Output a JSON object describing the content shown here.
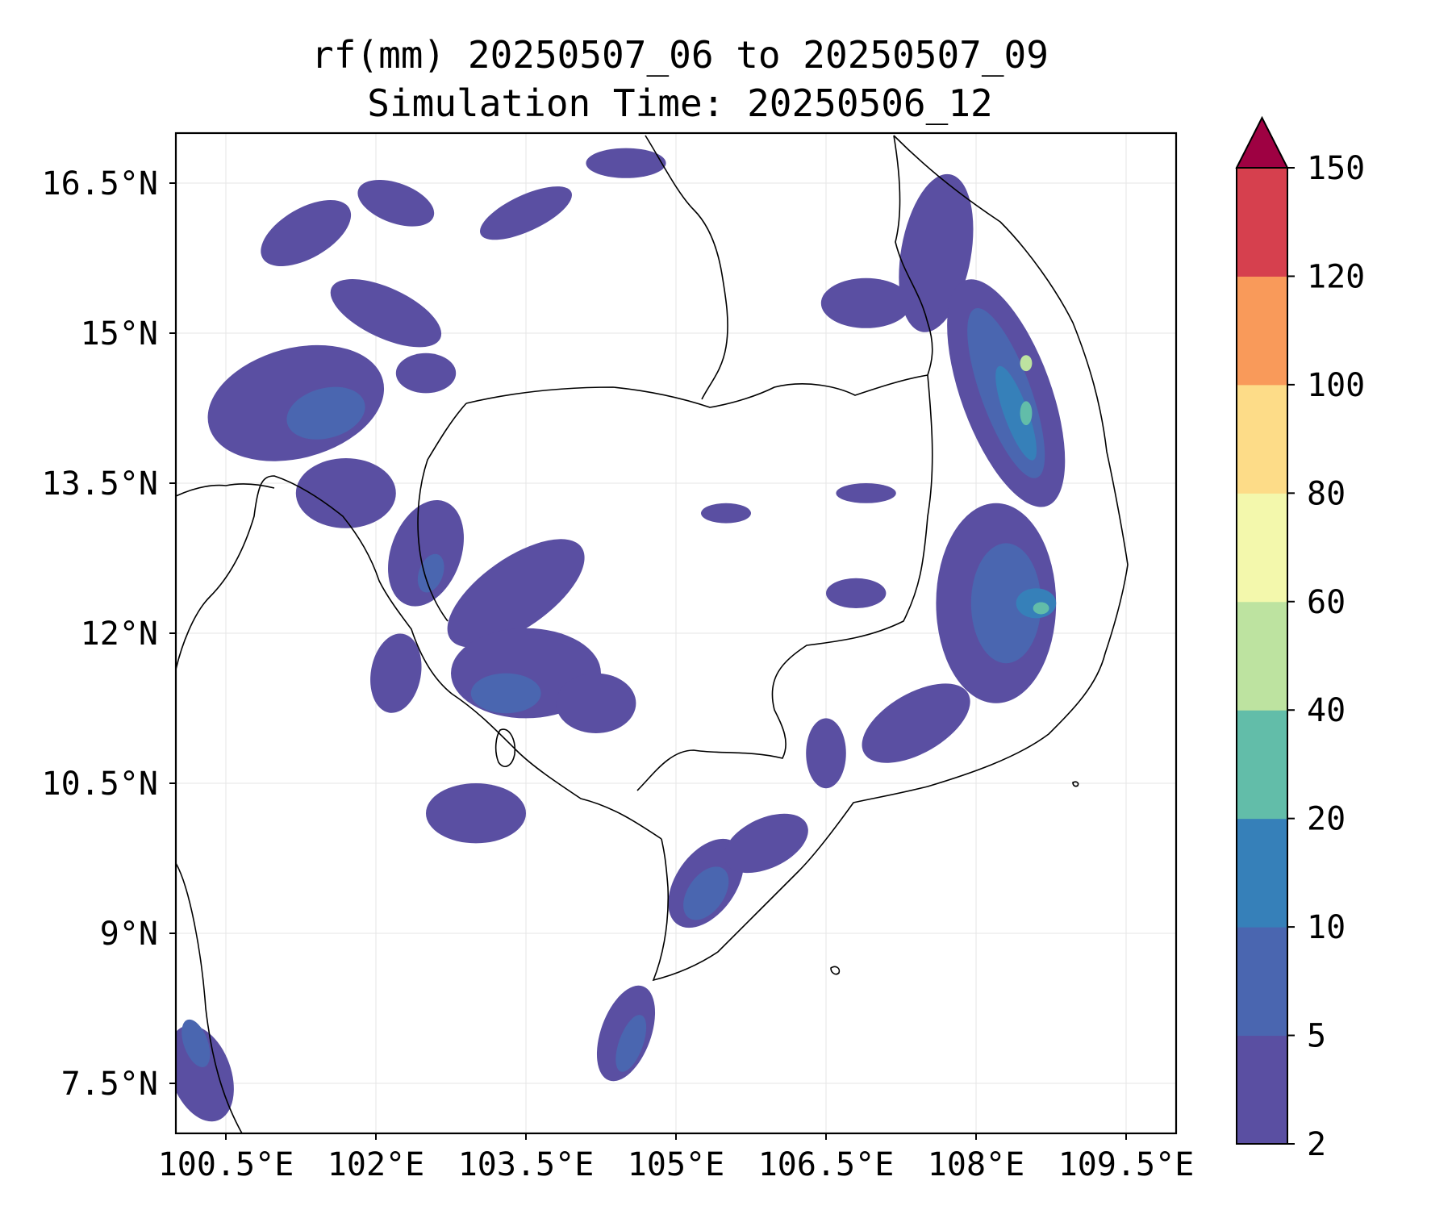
{
  "title": {
    "line1": "rf(mm) 20250507_06 to 20250507_09",
    "line2": "Simulation Time: 20250506_12"
  },
  "map": {
    "lon_range": [
      100.0,
      110.0
    ],
    "lat_range": [
      7.0,
      17.0
    ],
    "x_ticks": [
      {
        "value": 100.5,
        "label": "100.5°E"
      },
      {
        "value": 102.0,
        "label": "102°E"
      },
      {
        "value": 103.5,
        "label": "103.5°E"
      },
      {
        "value": 105.0,
        "label": "105°E"
      },
      {
        "value": 106.5,
        "label": "106.5°E"
      },
      {
        "value": 108.0,
        "label": "108°E"
      },
      {
        "value": 109.5,
        "label": "109.5°E"
      }
    ],
    "y_ticks": [
      {
        "value": 16.5,
        "label": "16.5°N"
      },
      {
        "value": 15.0,
        "label": "15°N"
      },
      {
        "value": 13.5,
        "label": "13.5°N"
      },
      {
        "value": 12.0,
        "label": "12°N"
      },
      {
        "value": 10.5,
        "label": "10.5°N"
      },
      {
        "value": 9.0,
        "label": "9°N"
      },
      {
        "value": 7.5,
        "label": "7.5°N"
      }
    ],
    "grid": true
  },
  "colorbar": {
    "levels": [
      2,
      5,
      10,
      20,
      40,
      60,
      80,
      100,
      120,
      150
    ],
    "labels": [
      "2",
      "5",
      "10",
      "20",
      "40",
      "60",
      "80",
      "100",
      "120",
      "150"
    ],
    "colors": [
      "#5a4fa2",
      "#4a66b0",
      "#3680b9",
      "#62bda9",
      "#bde3a0",
      "#f3f8ac",
      "#fddc88",
      "#f99a5a",
      "#d6404e"
    ],
    "extend_color": "#9e0142"
  },
  "rain_areas": [
    {
      "lon": 101.3,
      "lat": 16.0,
      "rx": 0.5,
      "ry": 0.25,
      "rot": -30,
      "level": 0
    },
    {
      "lon": 102.2,
      "lat": 16.3,
      "rx": 0.4,
      "ry": 0.2,
      "rot": 20,
      "level": 0
    },
    {
      "lon": 103.5,
      "lat": 16.2,
      "rx": 0.5,
      "ry": 0.18,
      "rot": -25,
      "level": 0
    },
    {
      "lon": 104.5,
      "lat": 16.7,
      "rx": 0.4,
      "ry": 0.15,
      "rot": 0,
      "level": 0
    },
    {
      "lon": 101.2,
      "lat": 14.3,
      "rx": 0.9,
      "ry": 0.55,
      "rot": -15,
      "level": 0
    },
    {
      "lon": 101.5,
      "lat": 14.2,
      "rx": 0.4,
      "ry": 0.25,
      "rot": -15,
      "level": 1
    },
    {
      "lon": 101.7,
      "lat": 13.4,
      "rx": 0.5,
      "ry": 0.35,
      "rot": 0,
      "level": 0
    },
    {
      "lon": 102.1,
      "lat": 15.2,
      "rx": 0.6,
      "ry": 0.25,
      "rot": 25,
      "level": 0
    },
    {
      "lon": 102.5,
      "lat": 14.6,
      "rx": 0.3,
      "ry": 0.2,
      "rot": 0,
      "level": 0
    },
    {
      "lon": 102.5,
      "lat": 12.8,
      "rx": 0.35,
      "ry": 0.55,
      "rot": 20,
      "level": 0
    },
    {
      "lon": 102.55,
      "lat": 12.6,
      "rx": 0.12,
      "ry": 0.2,
      "rot": 20,
      "level": 1
    },
    {
      "lon": 103.4,
      "lat": 12.4,
      "rx": 0.8,
      "ry": 0.35,
      "rot": -35,
      "level": 0
    },
    {
      "lon": 103.5,
      "lat": 11.6,
      "rx": 0.75,
      "ry": 0.45,
      "rot": 0,
      "level": 0
    },
    {
      "lon": 103.3,
      "lat": 11.4,
      "rx": 0.35,
      "ry": 0.2,
      "rot": 0,
      "level": 1
    },
    {
      "lon": 104.2,
      "lat": 11.3,
      "rx": 0.4,
      "ry": 0.3,
      "rot": 0,
      "level": 0
    },
    {
      "lon": 102.2,
      "lat": 11.6,
      "rx": 0.25,
      "ry": 0.4,
      "rot": 10,
      "level": 0
    },
    {
      "lon": 103.0,
      "lat": 10.2,
      "rx": 0.5,
      "ry": 0.3,
      "rot": 0,
      "level": 0
    },
    {
      "lon": 104.5,
      "lat": 8.0,
      "rx": 0.25,
      "ry": 0.5,
      "rot": 20,
      "level": 0
    },
    {
      "lon": 104.55,
      "lat": 7.9,
      "rx": 0.12,
      "ry": 0.3,
      "rot": 20,
      "level": 1
    },
    {
      "lon": 105.3,
      "lat": 9.5,
      "rx": 0.3,
      "ry": 0.5,
      "rot": 35,
      "level": 0
    },
    {
      "lon": 105.3,
      "lat": 9.4,
      "rx": 0.18,
      "ry": 0.3,
      "rot": 35,
      "level": 1
    },
    {
      "lon": 105.9,
      "lat": 9.9,
      "rx": 0.45,
      "ry": 0.25,
      "rot": -25,
      "level": 0
    },
    {
      "lon": 106.5,
      "lat": 10.8,
      "rx": 0.2,
      "ry": 0.35,
      "rot": 0,
      "level": 0
    },
    {
      "lon": 100.25,
      "lat": 7.6,
      "rx": 0.3,
      "ry": 0.5,
      "rot": -20,
      "level": 0
    },
    {
      "lon": 100.2,
      "lat": 7.9,
      "rx": 0.12,
      "ry": 0.25,
      "rot": -20,
      "level": 1
    },
    {
      "lon": 107.6,
      "lat": 15.8,
      "rx": 0.35,
      "ry": 0.8,
      "rot": 10,
      "level": 0
    },
    {
      "lon": 106.9,
      "lat": 15.3,
      "rx": 0.45,
      "ry": 0.25,
      "rot": 0,
      "level": 0
    },
    {
      "lon": 108.3,
      "lat": 14.4,
      "rx": 0.45,
      "ry": 1.2,
      "rot": -20,
      "level": 0
    },
    {
      "lon": 108.3,
      "lat": 14.4,
      "rx": 0.25,
      "ry": 0.9,
      "rot": -20,
      "level": 1
    },
    {
      "lon": 108.4,
      "lat": 14.2,
      "rx": 0.12,
      "ry": 0.5,
      "rot": -20,
      "level": 2
    },
    {
      "lon": 108.5,
      "lat": 14.2,
      "rx": 0.06,
      "ry": 0.12,
      "rot": 0,
      "level": 3
    },
    {
      "lon": 108.5,
      "lat": 14.7,
      "rx": 0.06,
      "ry": 0.08,
      "rot": 0,
      "level": 4
    },
    {
      "lon": 108.2,
      "lat": 12.3,
      "rx": 0.6,
      "ry": 1.0,
      "rot": 0,
      "level": 0
    },
    {
      "lon": 108.3,
      "lat": 12.3,
      "rx": 0.35,
      "ry": 0.6,
      "rot": 0,
      "level": 1
    },
    {
      "lon": 108.6,
      "lat": 12.3,
      "rx": 0.2,
      "ry": 0.15,
      "rot": 0,
      "level": 2
    },
    {
      "lon": 108.65,
      "lat": 12.25,
      "rx": 0.08,
      "ry": 0.06,
      "rot": 0,
      "level": 3
    },
    {
      "lon": 107.4,
      "lat": 11.1,
      "rx": 0.6,
      "ry": 0.3,
      "rot": -30,
      "level": 0
    },
    {
      "lon": 106.8,
      "lat": 12.4,
      "rx": 0.3,
      "ry": 0.15,
      "rot": 0,
      "level": 0
    },
    {
      "lon": 106.9,
      "lat": 13.4,
      "rx": 0.3,
      "ry": 0.1,
      "rot": 0,
      "level": 0
    },
    {
      "lon": 105.5,
      "lat": 13.2,
      "rx": 0.25,
      "ry": 0.1,
      "rot": 0,
      "level": 0
    }
  ]
}
